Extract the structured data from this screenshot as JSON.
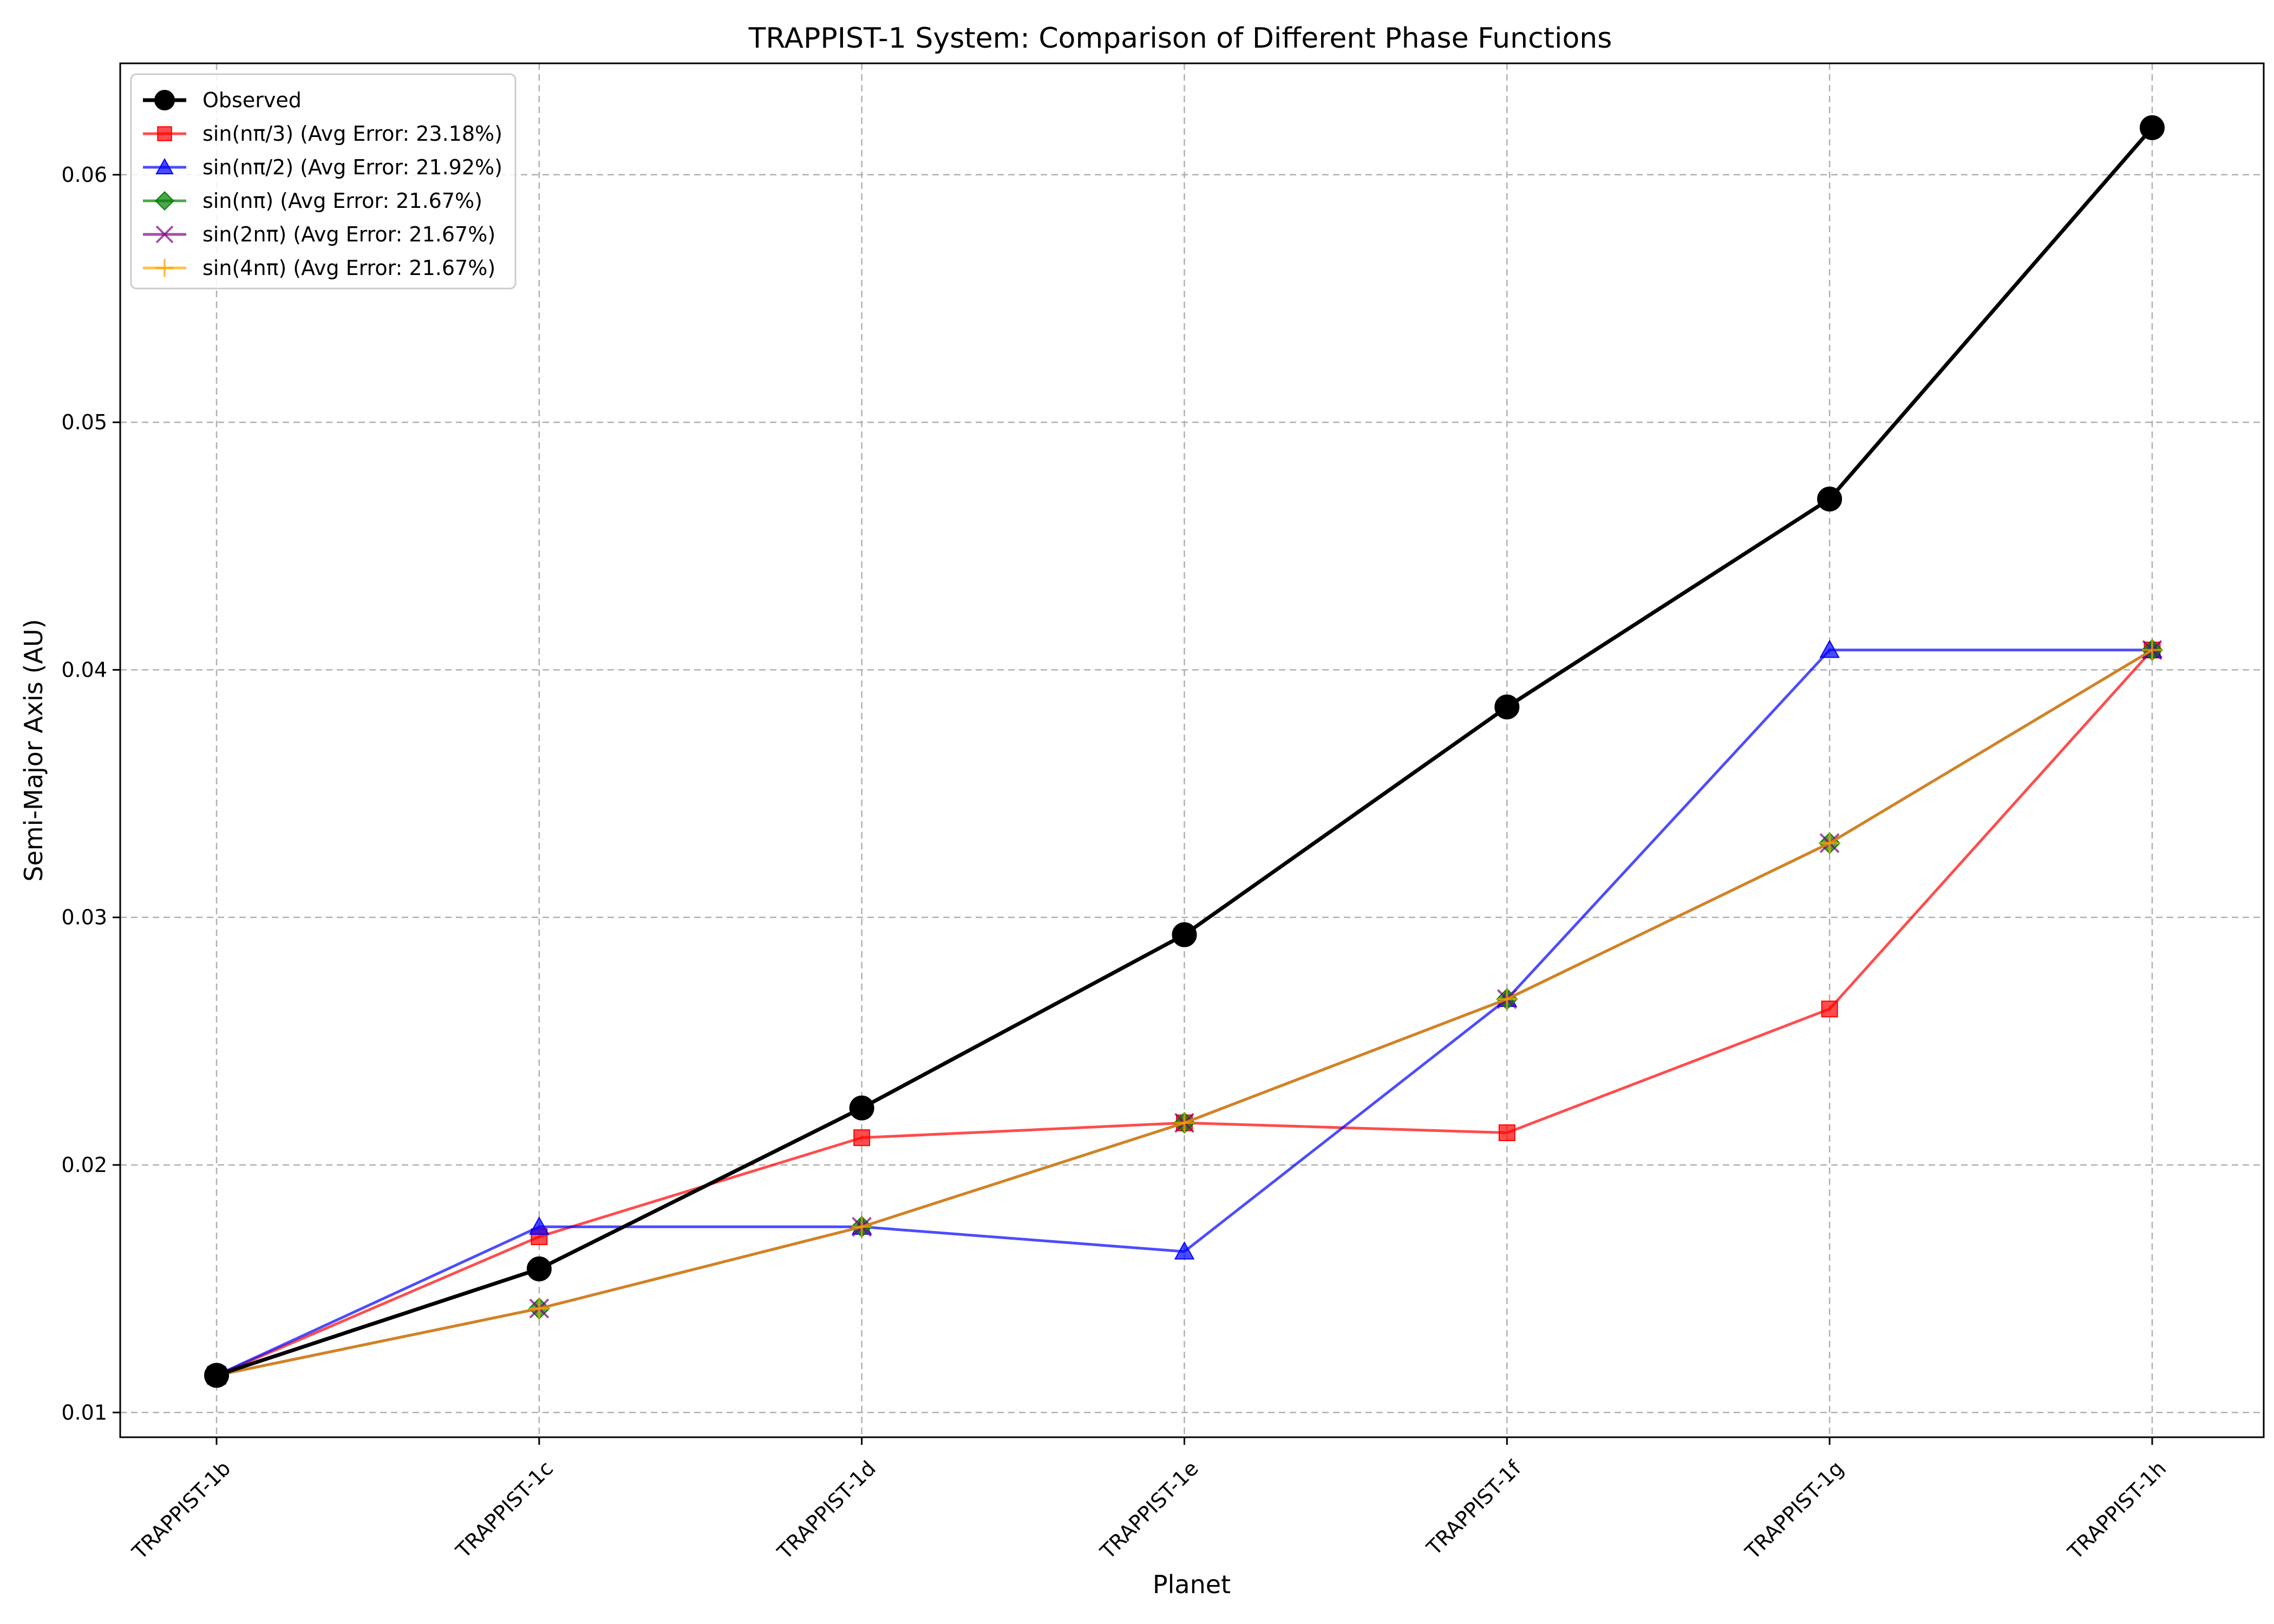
{
  "chart_data": {
    "type": "line",
    "title": "TRAPPIST-1 System: Comparison of Different Phase Functions",
    "xlabel": "Planet",
    "ylabel": "Semi-Major Axis (AU)",
    "categories": [
      "TRAPPIST-1b",
      "TRAPPIST-1c",
      "TRAPPIST-1d",
      "TRAPPIST-1e",
      "TRAPPIST-1f",
      "TRAPPIST-1g",
      "TRAPPIST-1h"
    ],
    "ylim": [
      0.009,
      0.0645
    ],
    "yticks": [
      0.01,
      0.02,
      0.03,
      0.04,
      0.05,
      0.06
    ],
    "ytick_labels": [
      "0.01",
      "0.02",
      "0.03",
      "0.04",
      "0.05",
      "0.06"
    ],
    "grid": true,
    "legend_position": "top-left",
    "series": [
      {
        "name": "Observed",
        "color": "#000000",
        "marker": "circle",
        "values": [
          0.0115,
          0.0158,
          0.0223,
          0.0293,
          0.0385,
          0.0469,
          0.0619
        ]
      },
      {
        "name": "sin(nπ/3) (Avg Error: 23.18%)",
        "color": "#ff0000",
        "marker": "square",
        "values": [
          0.0115,
          0.0171,
          0.0211,
          0.0217,
          0.0213,
          0.0263,
          0.0408
        ]
      },
      {
        "name": "sin(nπ/2) (Avg Error: 21.92%)",
        "color": "#0000ff",
        "marker": "triangle",
        "values": [
          0.0115,
          0.0175,
          0.0175,
          0.0165,
          0.0267,
          0.0408,
          0.0408
        ]
      },
      {
        "name": "sin(nπ) (Avg Error: 21.67%)",
        "color": "#008000",
        "marker": "diamond",
        "values": [
          0.0115,
          0.0142,
          0.0175,
          0.0217,
          0.0267,
          0.033,
          0.0408
        ]
      },
      {
        "name": "sin(2nπ) (Avg Error: 21.67%)",
        "color": "#800080",
        "marker": "x",
        "values": [
          0.0115,
          0.0142,
          0.0175,
          0.0217,
          0.0267,
          0.033,
          0.0408
        ]
      },
      {
        "name": "sin(4nπ) (Avg Error: 21.67%)",
        "color": "#ffa500",
        "marker": "plus",
        "values": [
          0.0115,
          0.0142,
          0.0175,
          0.0217,
          0.0267,
          0.033,
          0.0408
        ]
      }
    ]
  }
}
